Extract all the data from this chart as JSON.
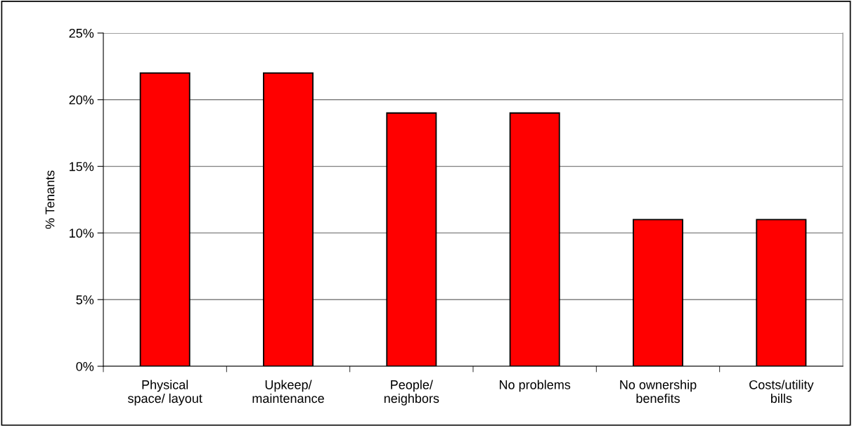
{
  "chart_data": {
    "type": "bar",
    "ylabel": "% Tenants",
    "categories": [
      "Physical\nspace/ layout",
      "Upkeep/\nmaintenance",
      "People/\nneighbors",
      "No problems",
      "No ownership\nbenefits",
      "Costs/utility\nbills"
    ],
    "values": [
      22,
      22,
      19,
      19,
      11,
      11
    ],
    "color": "#ff0000",
    "ylim": [
      0,
      25
    ],
    "yticks": [
      {
        "value": 0,
        "label": "0%"
      },
      {
        "value": 5,
        "label": "5%"
      },
      {
        "value": 10,
        "label": "10%"
      },
      {
        "value": 15,
        "label": "15%"
      },
      {
        "value": 20,
        "label": "20%"
      },
      {
        "value": 25,
        "label": "25%"
      }
    ],
    "grid": "y"
  }
}
